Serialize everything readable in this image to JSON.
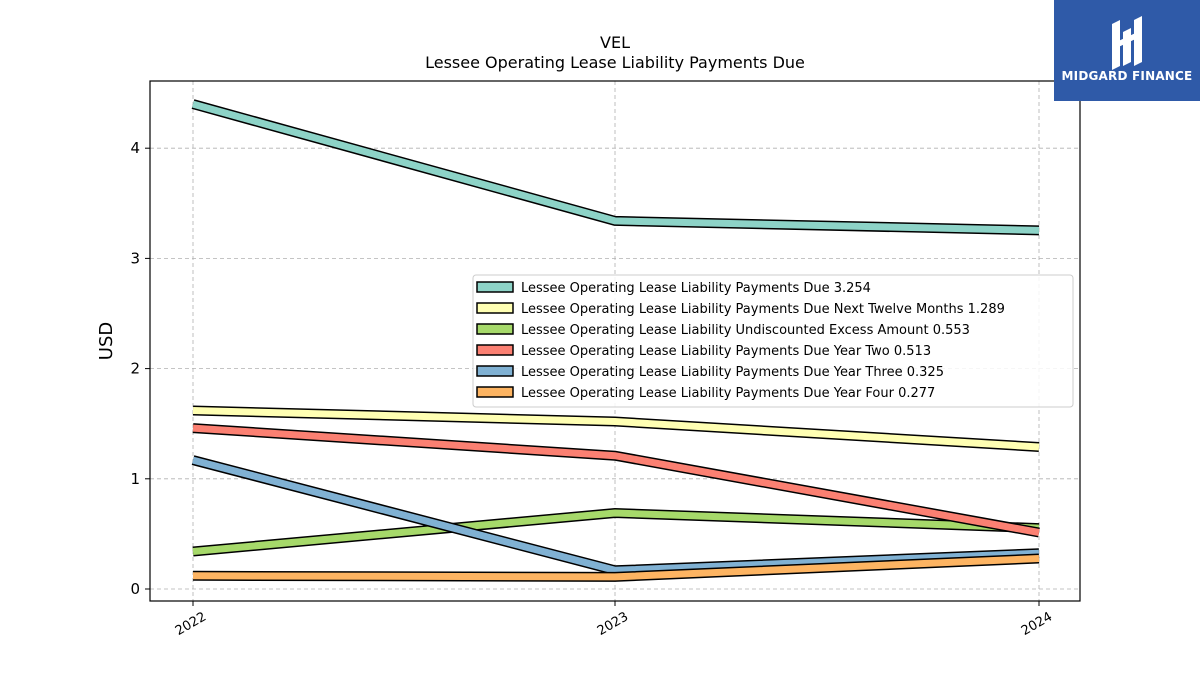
{
  "chart_data": {
    "type": "line",
    "title": "VEL",
    "subtitle": "Lessee Operating Lease Liability Payments Due",
    "ylabel": "USD",
    "xlabel": "",
    "x": [
      "2022",
      "2023",
      "2024"
    ],
    "ylim": [
      -0.1,
      4.62
    ],
    "yticks": [
      0,
      1,
      2,
      3,
      4
    ],
    "grid": true,
    "legend_position": "center-right",
    "series": [
      {
        "name": "Lessee Operating Lease Liability Payments Due",
        "legend": "Lessee Operating Lease Liability Payments Due  3.254",
        "values": [
          4.4,
          3.34,
          3.254
        ],
        "color": "#8dd3c7"
      },
      {
        "name": "Lessee Operating Lease Liability Payments Due Next Twelve Months",
        "legend": "Lessee Operating Lease Liability Payments Due Next Twelve Months  1.289",
        "values": [
          1.62,
          1.52,
          1.289
        ],
        "color": "#ffffb3"
      },
      {
        "name": "Lessee Operating Lease Liability Undiscounted Excess Amount",
        "legend": "Lessee Operating Lease Liability Undiscounted Excess Amount  0.553",
        "values": [
          0.34,
          0.69,
          0.553
        ],
        "color": "#a6d96a"
      },
      {
        "name": "Lessee Operating Lease Liability Payments Due Year Two",
        "legend": "Lessee Operating Lease Liability Payments Due Year Two  0.513",
        "values": [
          1.46,
          1.21,
          0.513
        ],
        "color": "#fb8072"
      },
      {
        "name": "Lessee Operating Lease Liability Payments Due Year Three",
        "legend": "Lessee Operating Lease Liability Payments Due Year Three  0.325",
        "values": [
          1.17,
          0.17,
          0.325
        ],
        "color": "#80b1d3"
      },
      {
        "name": "Lessee Operating Lease Liability Payments Due Year Four",
        "legend": "Lessee Operating Lease Liability Payments Due Year Four  0.277",
        "values": [
          0.12,
          0.11,
          0.277
        ],
        "color": "#fdb462"
      }
    ]
  },
  "logo": {
    "text": "MIDGARD FINANCE"
  }
}
